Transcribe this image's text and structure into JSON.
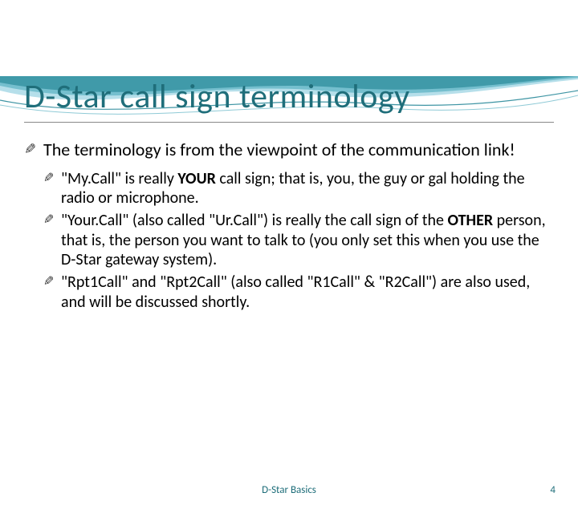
{
  "theme": {
    "accent_color": "#1f6e7a",
    "wave_light": "#a9d9e6",
    "wave_mid": "#5fb4c4",
    "wave_dark": "#2a8a9a",
    "background": "#ffffff",
    "text_color": "#000000",
    "title_fontsize": 42,
    "body_fontsize": 22,
    "sub_fontsize": 20,
    "footer_fontsize": 13
  },
  "title": "D-Star call sign terminology",
  "main_point": "The terminology is from the viewpoint of the communication link!",
  "sub_points": [
    "\"My.Call\" is really <b>YOUR</b> call sign;  that is, you, the guy or gal holding the radio or microphone.",
    "\"Your.Call\" (also called \"Ur.Call\") is really the call sign of the <b>OTHER</b> person, that is, the person you want to talk to (you only set this when you use the D-Star gateway system).",
    "\"Rpt1Call\" and \"Rpt2Call\" (also called \"R1Call\" & \"R2Call\") are also used, and will be discussed shortly."
  ],
  "footer": {
    "center": "D-Star Basics",
    "page_number": "4"
  }
}
